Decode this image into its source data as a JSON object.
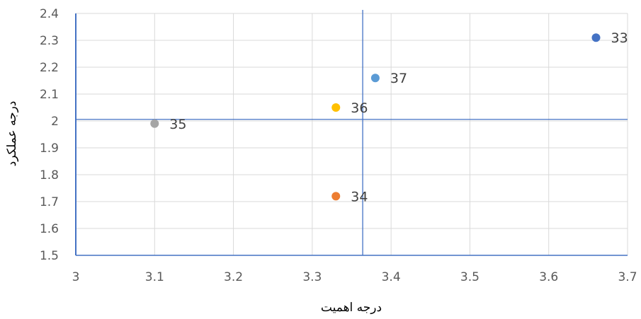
{
  "chart_data": {
    "type": "scatter",
    "xlabel": "درجه اهمیت",
    "ylabel": "درجه عملکرد",
    "xlim": [
      3,
      3.7
    ],
    "ylim": [
      1.5,
      2.4
    ],
    "grid": true,
    "x_ticks": [
      "3",
      "3.1",
      "3.2",
      "3.3",
      "3.4",
      "3.5",
      "3.6",
      "3.7"
    ],
    "y_ticks": [
      "1.5",
      "1.6",
      "1.7",
      "1.8",
      "1.9",
      "2",
      "2.1",
      "2.2",
      "2.3",
      "2.4"
    ],
    "points": [
      {
        "label": "33",
        "x": 3.66,
        "y": 2.31,
        "color": "#4472C4"
      },
      {
        "label": "34",
        "x": 3.33,
        "y": 1.72,
        "color": "#ED7D31"
      },
      {
        "label": "35",
        "x": 3.1,
        "y": 1.99,
        "color": "#A5A5A5"
      },
      {
        "label": "36",
        "x": 3.33,
        "y": 2.05,
        "color": "#FFC000"
      },
      {
        "label": "37",
        "x": 3.38,
        "y": 2.16,
        "color": "#5B9BD5"
      }
    ],
    "reference_lines": {
      "x": 3.364,
      "y": 2.006,
      "color": "#4472C4"
    }
  }
}
